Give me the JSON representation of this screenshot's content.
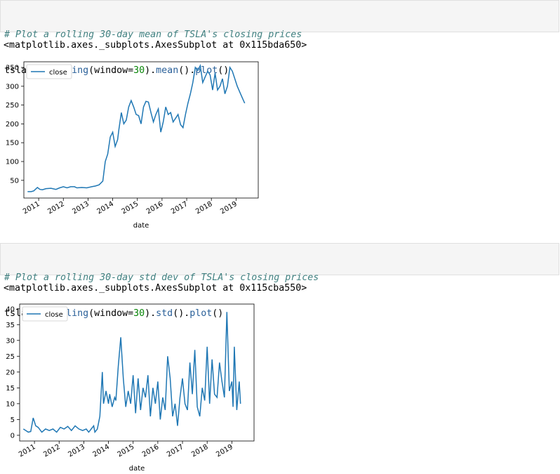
{
  "cell1": {
    "comment": "# Plot a rolling 30-day mean of TSLA's closing prices",
    "code_parts": [
      "tsla_df.",
      "rolling",
      "(window=",
      "30",
      ").",
      "mean",
      "().",
      "plot",
      "()"
    ],
    "output": "<matplotlib.axes._subplots.AxesSubplot at 0x115bda650>"
  },
  "cell2": {
    "comment": "# Plot a rolling 30-day std dev of TSLA's closing prices",
    "code_parts": [
      "tsla_df.",
      "rolling",
      "(window=",
      "30",
      ").",
      "std",
      "().",
      "plot",
      "()"
    ],
    "output": "<matplotlib.axes._subplots.AxesSubplot at 0x115cba550>"
  },
  "colors": {
    "line": "#1f77b4",
    "axis": "#000000"
  },
  "chart_data": [
    {
      "type": "line",
      "xlabel": "date",
      "ylabel": "",
      "legend": [
        "close"
      ],
      "legend_position": "top-left",
      "x_ticks": [
        "2011",
        "2012",
        "2013",
        "2014",
        "2015",
        "2016",
        "2017",
        "2018",
        "2019"
      ],
      "y_ticks": [
        50,
        100,
        150,
        200,
        250,
        300,
        350
      ],
      "xlim": [
        2010.4,
        2019.9
      ],
      "ylim": [
        3,
        365
      ],
      "series": [
        {
          "name": "close",
          "x": [
            2010.55,
            2010.7,
            2010.8,
            2010.95,
            2011.05,
            2011.15,
            2011.3,
            2011.5,
            2011.7,
            2011.85,
            2012.0,
            2012.15,
            2012.3,
            2012.45,
            2012.55,
            2012.75,
            2012.95,
            2013.15,
            2013.3,
            2013.45,
            2013.6,
            2013.7,
            2013.8,
            2013.9,
            2014.0,
            2014.1,
            2014.2,
            2014.25,
            2014.35,
            2014.45,
            2014.55,
            2014.65,
            2014.75,
            2014.85,
            2014.95,
            2015.05,
            2015.15,
            2015.25,
            2015.35,
            2015.45,
            2015.55,
            2015.65,
            2015.75,
            2015.85,
            2015.95,
            2016.05,
            2016.15,
            2016.25,
            2016.35,
            2016.45,
            2016.55,
            2016.65,
            2016.75,
            2016.85,
            2016.95,
            2017.05,
            2017.15,
            2017.25,
            2017.35,
            2017.45,
            2017.55,
            2017.65,
            2017.75,
            2017.85,
            2017.95,
            2018.05,
            2018.15,
            2018.25,
            2018.35,
            2018.45,
            2018.55,
            2018.65,
            2018.75,
            2018.85,
            2018.95,
            2019.05,
            2019.15,
            2019.25,
            2019.35
          ],
          "values": [
            20,
            20,
            22,
            31,
            26,
            25,
            28,
            29,
            26,
            30,
            33,
            30,
            33,
            33,
            30,
            31,
            30,
            33,
            35,
            38,
            48,
            100,
            120,
            165,
            178,
            140,
            158,
            185,
            230,
            200,
            210,
            245,
            262,
            245,
            225,
            222,
            200,
            245,
            260,
            258,
            230,
            205,
            225,
            240,
            178,
            205,
            245,
            225,
            230,
            205,
            215,
            225,
            198,
            190,
            225,
            255,
            280,
            310,
            350,
            342,
            355,
            310,
            325,
            340,
            330,
            290,
            335,
            290,
            300,
            320,
            280,
            300,
            350,
            340,
            320,
            300,
            285,
            270,
            255
          ]
        }
      ]
    },
    {
      "type": "line",
      "xlabel": "date",
      "ylabel": "",
      "legend": [
        "close"
      ],
      "legend_position": "top-left",
      "x_ticks": [
        "2011",
        "2012",
        "2013",
        "2014",
        "2015",
        "2016",
        "2017",
        "2018",
        "2019"
      ],
      "y_ticks": [
        0,
        5,
        10,
        15,
        20,
        25,
        30,
        35,
        40
      ],
      "xlim": [
        2010.4,
        2019.9
      ],
      "ylim": [
        -1.8,
        41.5
      ],
      "series": [
        {
          "name": "close",
          "x": [
            2010.55,
            2010.65,
            2010.75,
            2010.85,
            2010.95,
            2011.05,
            2011.15,
            2011.3,
            2011.45,
            2011.6,
            2011.75,
            2011.9,
            2012.05,
            2012.2,
            2012.35,
            2012.5,
            2012.65,
            2012.8,
            2012.95,
            2013.1,
            2013.2,
            2013.3,
            2013.4,
            2013.45,
            2013.55,
            2013.65,
            2013.75,
            2013.8,
            2013.9,
            2014.0,
            2014.05,
            2014.15,
            2014.25,
            2014.3,
            2014.4,
            2014.5,
            2014.6,
            2014.7,
            2014.8,
            2014.9,
            2015.0,
            2015.1,
            2015.2,
            2015.3,
            2015.4,
            2015.5,
            2015.6,
            2015.7,
            2015.8,
            2015.9,
            2016.0,
            2016.1,
            2016.2,
            2016.3,
            2016.4,
            2016.5,
            2016.6,
            2016.7,
            2016.8,
            2016.9,
            2017.0,
            2017.1,
            2017.2,
            2017.3,
            2017.4,
            2017.5,
            2017.6,
            2017.7,
            2017.8,
            2017.9,
            2018.0,
            2018.1,
            2018.2,
            2018.3,
            2018.4,
            2018.5,
            2018.6,
            2018.7,
            2018.8,
            2018.9,
            2019.0,
            2019.05,
            2019.1,
            2019.2,
            2019.3,
            2019.35
          ],
          "values": [
            2,
            1.5,
            1,
            1.2,
            5.5,
            3,
            2.5,
            1,
            2,
            1.5,
            2,
            1,
            2.5,
            2,
            2.8,
            1.5,
            3,
            2,
            1.5,
            2,
            1,
            2,
            3,
            1,
            2,
            6,
            20,
            10,
            14,
            10,
            13,
            9,
            12,
            11,
            22,
            31,
            18,
            9,
            14,
            10,
            19,
            7,
            18,
            8,
            15,
            12,
            19,
            6,
            15,
            10,
            17,
            5,
            12,
            8,
            25,
            18,
            6,
            10,
            3,
            12,
            18,
            10,
            8,
            23,
            13,
            27,
            9,
            6,
            15,
            11,
            28,
            10,
            24,
            13,
            12,
            23,
            17,
            12,
            39,
            14,
            17,
            9,
            28,
            8,
            17,
            10
          ]
        }
      ]
    }
  ]
}
